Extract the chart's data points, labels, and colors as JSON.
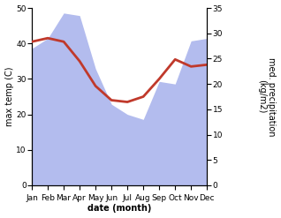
{
  "months": [
    "Jan",
    "Feb",
    "Mar",
    "Apr",
    "May",
    "Jun",
    "Jul",
    "Aug",
    "Sep",
    "Oct",
    "Nov",
    "Dec"
  ],
  "temp": [
    40.5,
    41.5,
    40.5,
    35.0,
    28.0,
    24.0,
    23.5,
    25.0,
    30.0,
    35.5,
    33.5,
    34.0
  ],
  "precip": [
    27.0,
    29.0,
    34.0,
    33.5,
    23.0,
    16.0,
    14.0,
    13.0,
    20.5,
    20.0,
    28.5,
    29.0
  ],
  "temp_ylim": [
    0,
    50
  ],
  "precip_ylim": [
    0,
    35
  ],
  "temp_color": "#c0392b",
  "precip_fill_color": "#b3bcee",
  "xlabel": "date (month)",
  "ylabel_left": "max temp (C)",
  "ylabel_right": "med. precipitation\n(kg/m2)",
  "yticks_left": [
    0,
    10,
    20,
    30,
    40,
    50
  ],
  "yticks_right": [
    0,
    5,
    10,
    15,
    20,
    25,
    30,
    35
  ],
  "temp_linewidth": 2.0,
  "bg_color": "#ffffff",
  "label_fontsize": 7,
  "tick_fontsize": 6.5
}
